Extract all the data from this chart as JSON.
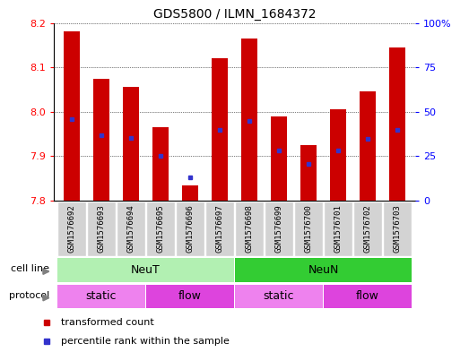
{
  "title": "GDS5800 / ILMN_1684372",
  "samples": [
    "GSM1576692",
    "GSM1576693",
    "GSM1576694",
    "GSM1576695",
    "GSM1576696",
    "GSM1576697",
    "GSM1576698",
    "GSM1576699",
    "GSM1576700",
    "GSM1576701",
    "GSM1576702",
    "GSM1576703"
  ],
  "red_values": [
    8.18,
    8.075,
    8.055,
    7.965,
    7.835,
    8.12,
    8.165,
    7.99,
    7.925,
    8.005,
    8.045,
    8.145
  ],
  "blue_values": [
    7.983,
    7.948,
    7.942,
    7.9,
    7.852,
    7.96,
    7.98,
    7.912,
    7.882,
    7.912,
    7.94,
    7.96
  ],
  "ymin": 7.8,
  "ymax": 8.2,
  "yticks": [
    7.8,
    7.9,
    8.0,
    8.1,
    8.2
  ],
  "y2ticks": [
    0,
    25,
    50,
    75,
    100
  ],
  "bar_color": "#cc0000",
  "blue_color": "#3333cc",
  "bg_color": "#d3d3d3",
  "cell_line_neut_color": "#b2f0b2",
  "cell_line_neun_color": "#33cc33",
  "protocol_static_color": "#ee82ee",
  "protocol_flow_color": "#dd44dd",
  "cell_line_label": "cell line",
  "protocol_label": "protocol",
  "neut_label": "NeuT",
  "neun_label": "NeuN",
  "static_label": "static",
  "flow_label": "flow",
  "legend_red": "transformed count",
  "legend_blue": "percentile rank within the sample",
  "neut_range": [
    0,
    5
  ],
  "neun_range": [
    6,
    11
  ],
  "protocol_regions": [
    [
      0,
      2,
      "static"
    ],
    [
      3,
      5,
      "flow"
    ],
    [
      6,
      8,
      "static"
    ],
    [
      9,
      11,
      "flow"
    ]
  ]
}
